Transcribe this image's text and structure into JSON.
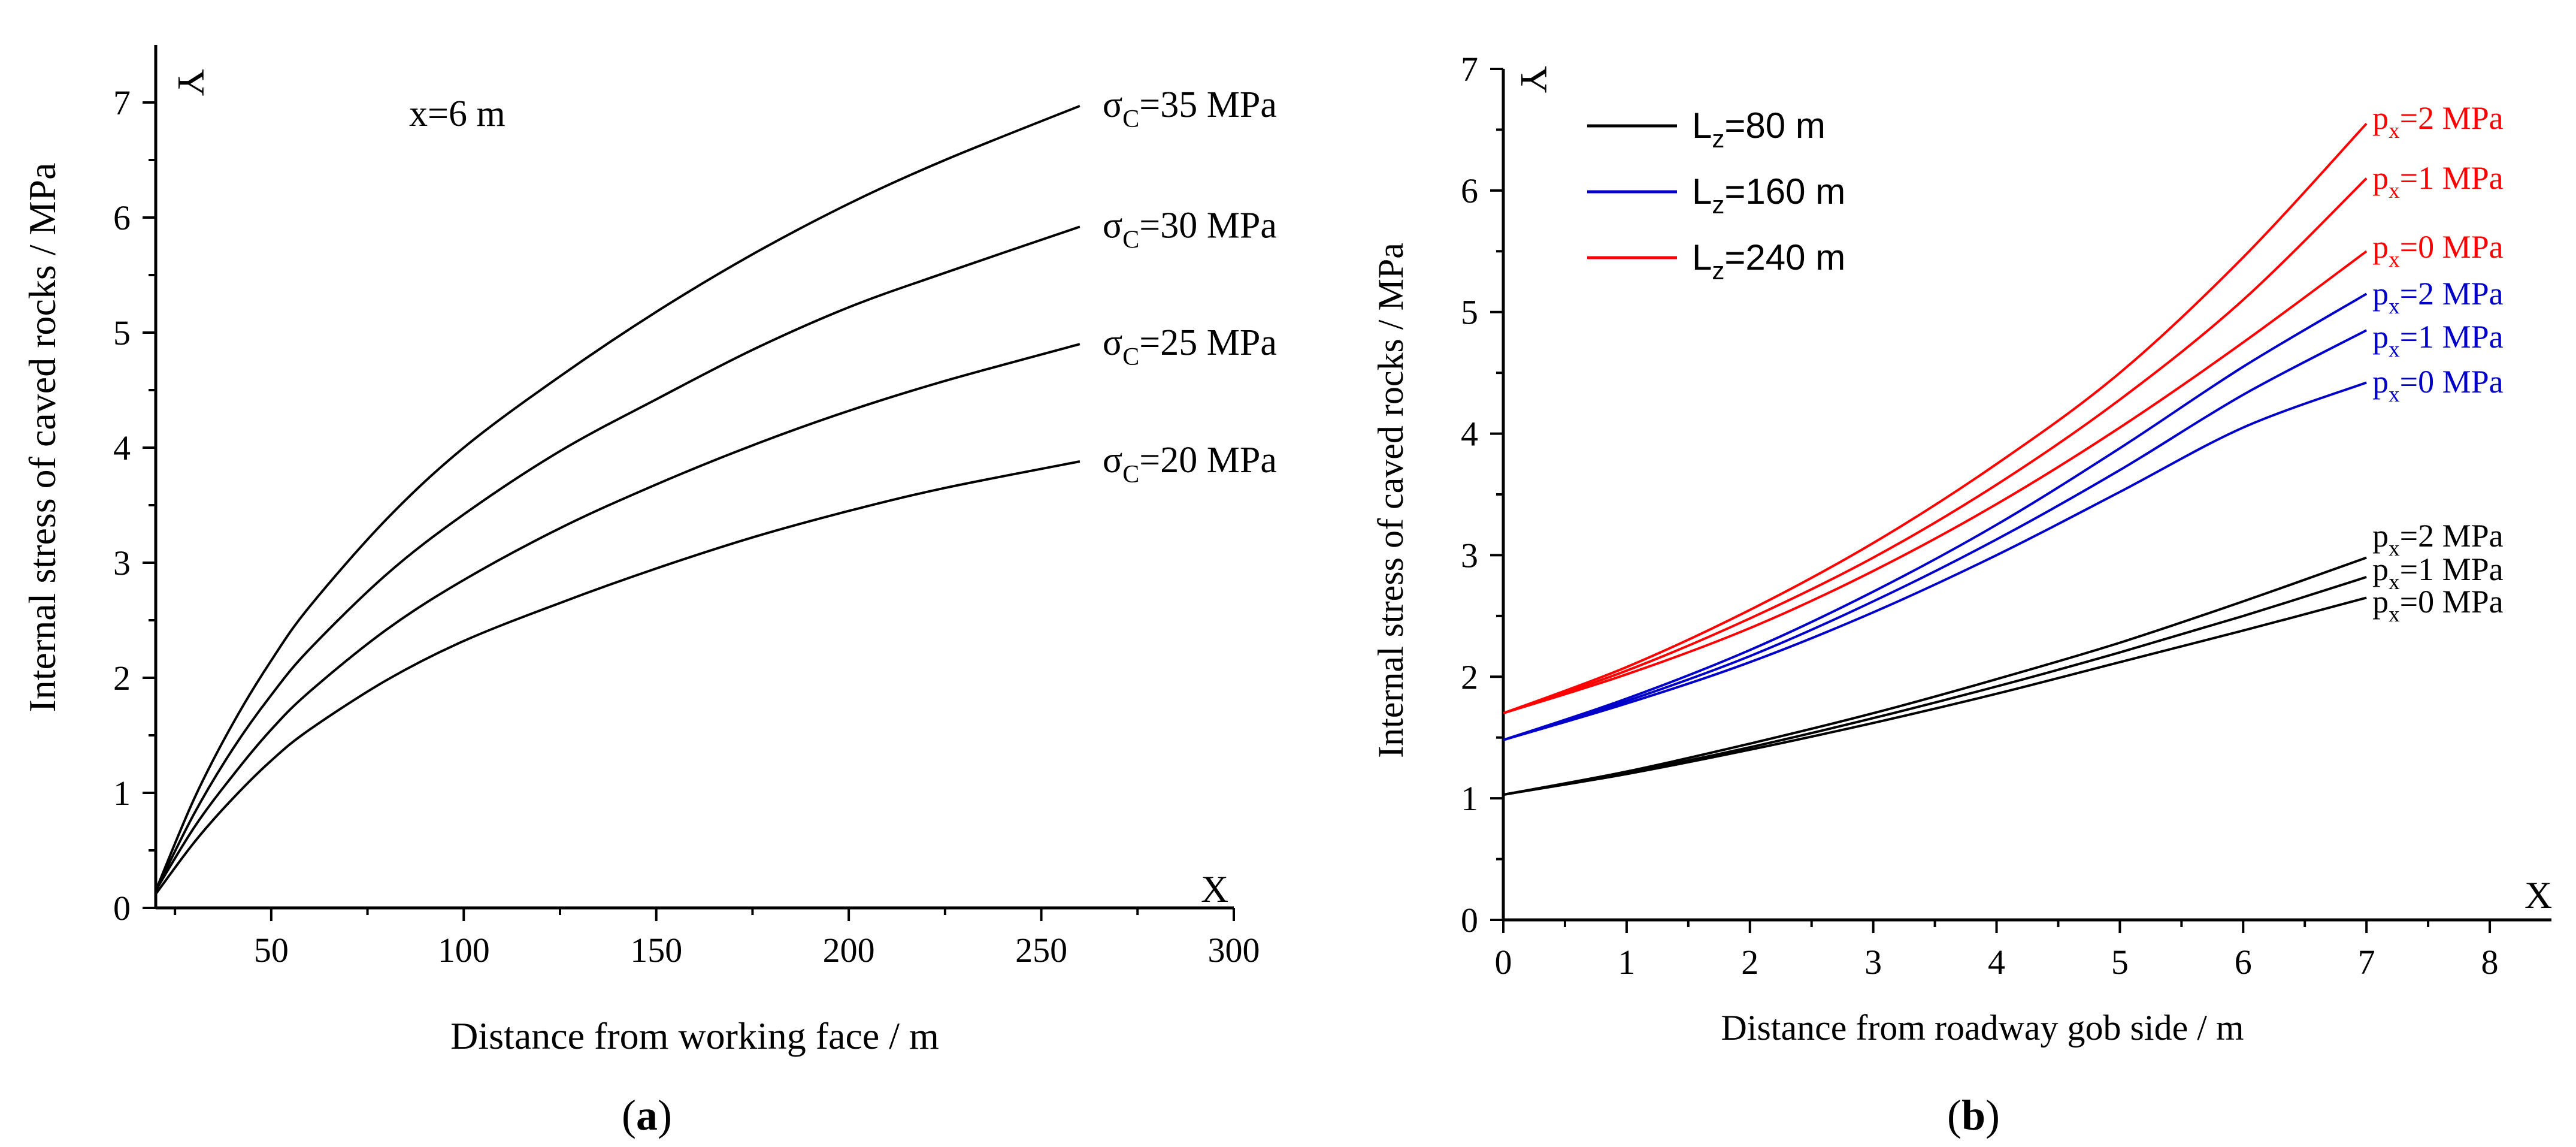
{
  "chart_data": [
    {
      "panel": "a",
      "type": "line",
      "caption": "(a)",
      "caption_bold": "a",
      "xlabel": "Distance from working face / m",
      "ylabel": "Internal stress of caved rocks / MPa",
      "x_axis_letter": "X",
      "y_axis_letter": "Y",
      "annotation": "x=6 m",
      "xlim": [
        20,
        300
      ],
      "ylim": [
        0,
        7.5
      ],
      "xticks": [
        50,
        100,
        150,
        200,
        250,
        300
      ],
      "yticks": [
        0,
        1,
        2,
        3,
        4,
        5,
        6,
        7
      ],
      "series_color": "#000000",
      "series": [
        {
          "name": "σC=35 MPa",
          "label_sym": "σ",
          "label_sub": "C",
          "label_rest": "=35 MPa",
          "x": [
            20,
            30,
            40,
            50,
            60,
            80,
            100,
            125,
            150,
            175,
            200,
            225,
            260
          ],
          "y": [
            0.15,
            0.95,
            1.6,
            2.15,
            2.62,
            3.38,
            4.0,
            4.62,
            5.18,
            5.68,
            6.12,
            6.5,
            6.97
          ]
        },
        {
          "name": "σC=30 MPa",
          "label_sym": "σ",
          "label_sub": "C",
          "label_rest": "=30 MPa",
          "x": [
            20,
            30,
            40,
            50,
            60,
            80,
            100,
            125,
            150,
            175,
            200,
            225,
            260
          ],
          "y": [
            0.15,
            0.82,
            1.38,
            1.85,
            2.25,
            2.9,
            3.42,
            3.97,
            4.42,
            4.85,
            5.22,
            5.52,
            5.92
          ]
        },
        {
          "name": "σC=25 MPa",
          "label_sym": "σ",
          "label_sub": "C",
          "label_rest": "=25 MPa",
          "x": [
            20,
            30,
            40,
            50,
            60,
            80,
            100,
            125,
            150,
            175,
            200,
            225,
            260
          ],
          "y": [
            0.15,
            0.7,
            1.15,
            1.55,
            1.88,
            2.42,
            2.85,
            3.3,
            3.68,
            4.02,
            4.32,
            4.58,
            4.9
          ]
        },
        {
          "name": "σC=20 MPa",
          "label_sym": "σ",
          "label_sub": "C",
          "label_rest": "=20 MPa",
          "x": [
            20,
            30,
            40,
            50,
            60,
            80,
            100,
            125,
            150,
            175,
            200,
            225,
            260
          ],
          "y": [
            0.12,
            0.57,
            0.95,
            1.28,
            1.55,
            1.98,
            2.32,
            2.65,
            2.95,
            3.22,
            3.45,
            3.65,
            3.88
          ]
        }
      ]
    },
    {
      "panel": "b",
      "type": "line",
      "caption": "(b)",
      "caption_bold": "b",
      "xlabel": "Distance from roadway gob side / m",
      "ylabel": "Internal stress of caved rocks / MPa",
      "x_axis_letter": "X",
      "y_axis_letter": "Y",
      "xlim": [
        0,
        8.5
      ],
      "ylim": [
        0,
        7
      ],
      "xticks": [
        0,
        1,
        2,
        3,
        4,
        5,
        6,
        7,
        8
      ],
      "yticks": [
        0,
        1,
        2,
        3,
        4,
        5,
        6,
        7
      ],
      "legend": [
        {
          "prefix": "L",
          "sub": "z",
          "rest": "=80 m",
          "color": "#000000"
        },
        {
          "prefix": "L",
          "sub": "z",
          "rest": "=160 m",
          "color": "#0000c8"
        },
        {
          "prefix": "L",
          "sub": "z",
          "rest": "=240 m",
          "color": "#ff0000"
        }
      ],
      "series": [
        {
          "group": "Lz=240 m",
          "color": "#ff0000",
          "name": "px=2 MPa",
          "label_sym": "p",
          "label_sub": "x",
          "label_rest": "=2 MPa",
          "x": [
            0,
            1,
            2,
            3,
            4,
            5,
            6,
            7
          ],
          "y": [
            1.7,
            2.08,
            2.55,
            3.1,
            3.75,
            4.5,
            5.45,
            6.55
          ]
        },
        {
          "group": "Lz=240 m",
          "color": "#ff0000",
          "name": "px=1 MPa",
          "label_sym": "p",
          "label_sub": "x",
          "label_rest": "=1 MPa",
          "x": [
            0,
            1,
            2,
            3,
            4,
            5,
            6,
            7
          ],
          "y": [
            1.7,
            2.05,
            2.48,
            2.98,
            3.58,
            4.28,
            5.1,
            6.1
          ]
        },
        {
          "group": "Lz=240 m",
          "color": "#ff0000",
          "name": "px=0 MPa",
          "label_sym": "p",
          "label_sub": "x",
          "label_rest": "=0 MPa",
          "x": [
            0,
            1,
            2,
            3,
            4,
            5,
            6,
            7
          ],
          "y": [
            1.7,
            2.02,
            2.4,
            2.87,
            3.42,
            4.05,
            4.75,
            5.5
          ]
        },
        {
          "group": "Lz=160 m",
          "color": "#0000c8",
          "name": "px=2 MPa",
          "label_sym": "p",
          "label_sub": "x",
          "label_rest": "=2 MPa",
          "x": [
            0,
            1,
            2,
            3,
            4,
            5,
            6,
            7
          ],
          "y": [
            1.48,
            1.82,
            2.22,
            2.7,
            3.25,
            3.88,
            4.55,
            5.15
          ]
        },
        {
          "group": "Lz=160 m",
          "color": "#0000c8",
          "name": "px=1 MPa",
          "label_sym": "p",
          "label_sub": "x",
          "label_rest": "=1 MPa",
          "x": [
            0,
            1,
            2,
            3,
            4,
            5,
            6,
            7
          ],
          "y": [
            1.48,
            1.8,
            2.17,
            2.62,
            3.13,
            3.7,
            4.32,
            4.85
          ]
        },
        {
          "group": "Lz=160 m",
          "color": "#0000c8",
          "name": "px=0 MPa",
          "label_sym": "p",
          "label_sub": "x",
          "label_rest": "=0 MPa",
          "x": [
            0,
            1,
            2,
            3,
            4,
            5,
            6,
            7
          ],
          "y": [
            1.48,
            1.78,
            2.12,
            2.53,
            3.0,
            3.52,
            4.05,
            4.42
          ]
        },
        {
          "group": "Lz=80 m",
          "color": "#000000",
          "name": "px=2 MPa",
          "label_sym": "p",
          "label_sub": "x",
          "label_rest": "=2 MPa",
          "x": [
            0,
            1,
            2,
            3,
            4,
            5,
            6,
            7
          ],
          "y": [
            1.03,
            1.22,
            1.45,
            1.7,
            1.98,
            2.28,
            2.62,
            2.98
          ]
        },
        {
          "group": "Lz=80 m",
          "color": "#000000",
          "name": "px=1 MPa",
          "label_sym": "p",
          "label_sub": "x",
          "label_rest": "=1 MPa",
          "x": [
            0,
            1,
            2,
            3,
            4,
            5,
            6,
            7
          ],
          "y": [
            1.03,
            1.21,
            1.42,
            1.66,
            1.92,
            2.2,
            2.5,
            2.82
          ]
        },
        {
          "group": "Lz=80 m",
          "color": "#000000",
          "name": "px=0 MPa",
          "label_sym": "p",
          "label_sub": "x",
          "label_rest": "=0 MPa",
          "x": [
            0,
            1,
            2,
            3,
            4,
            5,
            6,
            7
          ],
          "y": [
            1.03,
            1.2,
            1.4,
            1.62,
            1.86,
            2.12,
            2.38,
            2.65
          ]
        }
      ]
    }
  ]
}
